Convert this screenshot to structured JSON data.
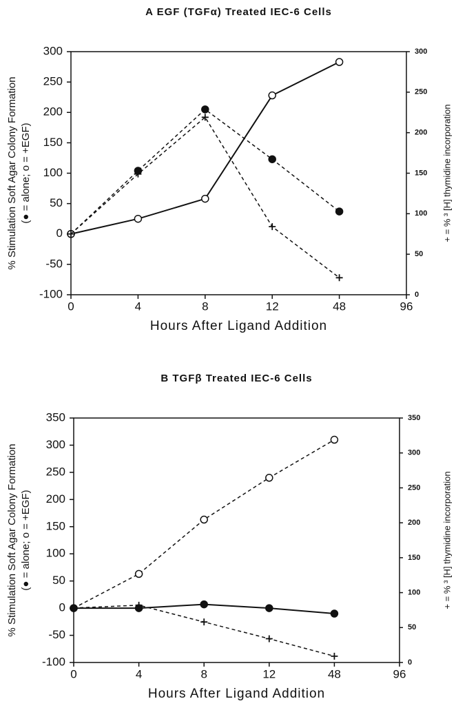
{
  "chart_data": [
    {
      "type": "line",
      "title": "A   EGF (TGFα) Treated IEC-6 Cells",
      "xlabel": "Hours After Ligand Addition",
      "ylabel_lines": [
        "% Stimulation Soft Agar Colony Formation",
        "(● = alone; o = +EGF)"
      ],
      "y2label": "+ = % ³ [H] thymidine incorporation",
      "categories": [
        "0",
        "4",
        "8",
        "12",
        "48",
        "96"
      ],
      "ylim": [
        -100,
        300
      ],
      "yticks": [
        -100,
        -50,
        0,
        50,
        100,
        150,
        200,
        250,
        300
      ],
      "y2lim": [
        0,
        300
      ],
      "y2ticks": [
        0,
        50,
        100,
        150,
        200,
        250,
        300
      ],
      "series": [
        {
          "color": "#111",
          "marker": "filled",
          "dashed": true,
          "values": [
            0,
            104,
            205,
            123,
            37,
            null
          ]
        },
        {
          "color": "#111",
          "marker": "open",
          "dashed": false,
          "values": [
            0,
            25,
            58,
            228,
            283,
            null
          ]
        },
        {
          "color": "#111",
          "marker": "plus",
          "dashed": true,
          "axis": "y2",
          "values": [
            75,
            149,
            219,
            84,
            21,
            null
          ]
        }
      ]
    },
    {
      "type": "line",
      "title": "B   TGFβ Treated IEC-6 Cells",
      "xlabel": "Hours After Ligand Addition",
      "ylabel_lines": [
        "% Stimulation Soft Agar Colony Formation",
        "(● = alone; o = +EGF)"
      ],
      "y2label": "+ = % ³ [H] thymidine incorporation",
      "categories": [
        "0",
        "4",
        "8",
        "12",
        "48",
        "96"
      ],
      "ylim": [
        -100,
        350
      ],
      "yticks": [
        -100,
        -50,
        0,
        50,
        100,
        150,
        200,
        250,
        300,
        350
      ],
      "y2lim": [
        0,
        350
      ],
      "y2ticks": [
        0,
        50,
        100,
        150,
        200,
        250,
        300,
        350
      ],
      "series": [
        {
          "color": "#111",
          "marker": "open",
          "dashed": true,
          "values": [
            0,
            63,
            163,
            240,
            310,
            null
          ]
        },
        {
          "color": "#111",
          "marker": "filled",
          "dashed": false,
          "values": [
            0,
            0,
            7,
            0,
            -10,
            null
          ]
        },
        {
          "color": "#111",
          "marker": "plus",
          "dashed": true,
          "axis": "y2",
          "values": [
            78,
            82,
            58,
            34,
            9,
            null
          ]
        }
      ]
    }
  ]
}
